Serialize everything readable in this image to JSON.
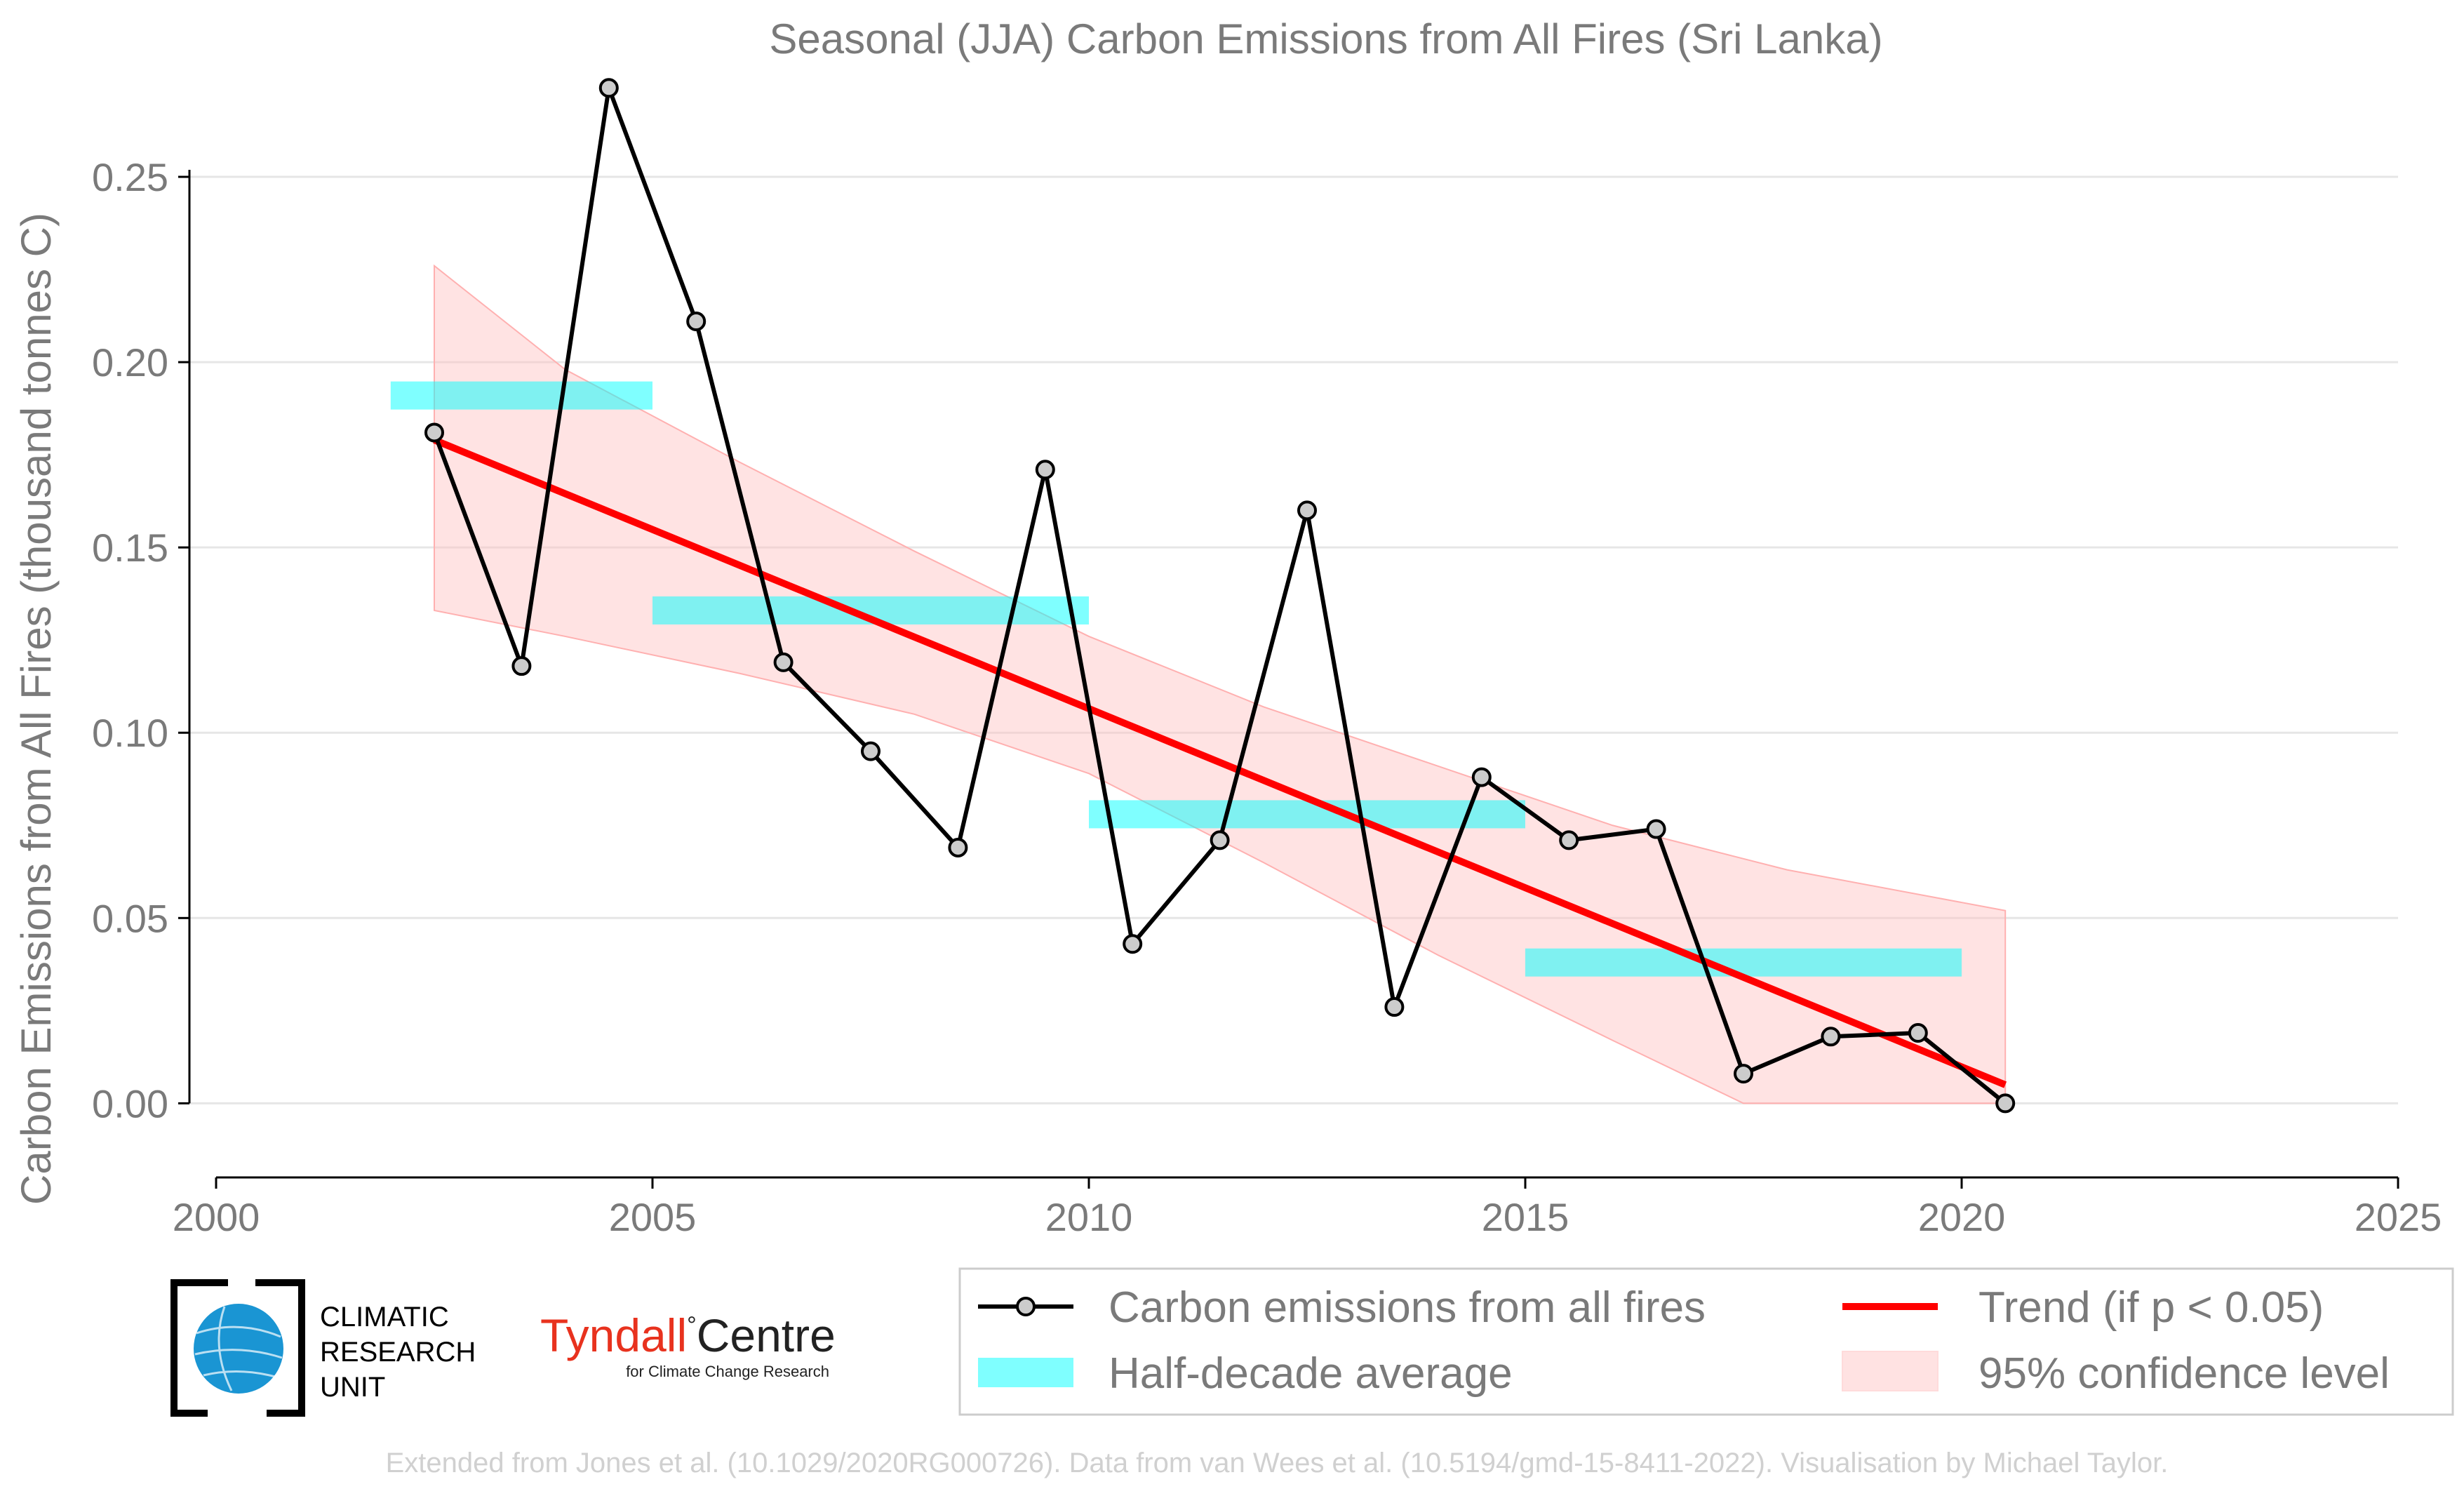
{
  "chart_data": {
    "type": "line",
    "title": "Seasonal (JJA) Carbon Emissions from All Fires (Sri Lanka)",
    "xlabel": "",
    "ylabel": "Carbon Emissions from All Fires (thousand tonnes C)",
    "xlim": [
      2000,
      2025
    ],
    "ylim": [
      -0.02,
      0.275
    ],
    "x_ticks": [
      "2000",
      "2005",
      "2010",
      "2015",
      "2020",
      "2025"
    ],
    "y_ticks": [
      "0.00",
      "0.05",
      "0.10",
      "0.15",
      "0.20",
      "0.25"
    ],
    "grid": "horizontal",
    "series": [
      {
        "name": "Carbon emissions from all fires",
        "color": "#000000",
        "x": [
          2002.5,
          2003.5,
          2004.5,
          2005.5,
          2006.5,
          2007.5,
          2008.5,
          2009.5,
          2010.5,
          2011.5,
          2012.5,
          2013.5,
          2014.5,
          2015.5,
          2016.5,
          2017.5,
          2018.5,
          2019.5,
          2020.5
        ],
        "values": [
          0.181,
          0.118,
          0.274,
          0.211,
          0.119,
          0.095,
          0.069,
          0.171,
          0.043,
          0.071,
          0.16,
          0.026,
          0.088,
          0.071,
          0.074,
          0.008,
          0.018,
          0.019,
          0.0
        ]
      },
      {
        "name": "Half-decade average",
        "color": "#00ffff",
        "segments": [
          {
            "x0": 2002,
            "x1": 2005,
            "value": 0.191
          },
          {
            "x0": 2005,
            "x1": 2010,
            "value": 0.133
          },
          {
            "x0": 2010,
            "x1": 2015,
            "value": 0.078
          },
          {
            "x0": 2015,
            "x1": 2020,
            "value": 0.038
          }
        ]
      },
      {
        "name": "Trend (if p < 0.05)",
        "color": "#ff0000",
        "x": [
          2002.5,
          2020.5
        ],
        "values": [
          0.179,
          0.005
        ]
      },
      {
        "name": "95% confidence level",
        "color": "#ffc0c0",
        "x": [
          2002.5,
          2004,
          2006,
          2008,
          2010,
          2012,
          2014,
          2016,
          2017.5,
          2018,
          2020.5
        ],
        "upper": [
          0.226,
          0.198,
          0.173,
          0.149,
          0.126,
          0.107,
          0.091,
          0.075,
          0.066,
          0.063,
          0.052
        ],
        "lower": [
          0.133,
          0.126,
          0.116,
          0.105,
          0.089,
          0.065,
          0.04,
          0.017,
          0.0,
          0.0,
          0.0
        ]
      }
    ],
    "legend": {
      "position": "bottom-right",
      "entries": [
        "Carbon emissions from all fires",
        "Trend (if p < 0.05)",
        "Half-decade average",
        "95% confidence level"
      ]
    }
  },
  "logos": {
    "cru_line1": "CLIMATIC",
    "cru_line2": "RESEARCH",
    "cru_line3": "UNIT",
    "tyndall_a": "Tyndall",
    "tyndall_deg": "°",
    "tyndall_b": "Centre",
    "tyndall_sub": "for Climate Change Research"
  },
  "credit": "Extended from Jones et al. (10.1029/2020RG000726). Data from van Wees et al. (10.5194/gmd-15-8411-2022). Visualisation by Michael Taylor."
}
